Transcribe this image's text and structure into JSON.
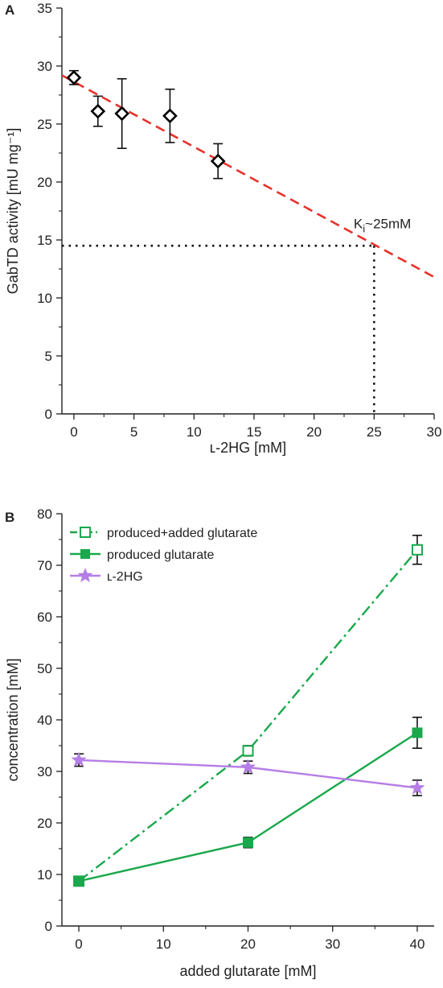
{
  "chart_data": [
    {
      "panel_label": "A",
      "type": "scatter",
      "xlabel": "ʟ-2HG [mM]",
      "ylabel": "GabTD activity [mU mg⁻¹]",
      "xlim": [
        -1,
        30
      ],
      "ylim": [
        0,
        35
      ],
      "x_ticks": [
        0,
        5,
        10,
        15,
        20,
        25,
        30
      ],
      "y_ticks": [
        0,
        5,
        10,
        15,
        20,
        25,
        30,
        35
      ],
      "series": [
        {
          "marker": "open-diamond",
          "color": "#000000",
          "points": [
            {
              "x": 0,
              "y": 29.0,
              "err": 0.6
            },
            {
              "x": 2,
              "y": 26.1,
              "err": 1.3
            },
            {
              "x": 4,
              "y": 25.9,
              "err": 3.0
            },
            {
              "x": 8,
              "y": 25.7,
              "err": 2.3
            },
            {
              "x": 12,
              "y": 21.8,
              "err": 1.5
            }
          ]
        }
      ],
      "fit_line": {
        "color": "#e8312a",
        "style": "dashed",
        "x": [
          -1,
          30
        ],
        "y": [
          29.2,
          11.8
        ]
      },
      "ki_reference": {
        "x": 25,
        "y": 14.5,
        "style": "dotted"
      },
      "annotation": {
        "text_main": "K",
        "text_sub": "i",
        "text_after": "~25mM"
      }
    },
    {
      "panel_label": "B",
      "type": "line",
      "xlabel": "added glutarate [mM]",
      "ylabel": "concentration [mM]",
      "xlim": [
        -2,
        42
      ],
      "ylim": [
        0,
        80
      ],
      "x_ticks": [
        0,
        10,
        20,
        30,
        40
      ],
      "y_ticks": [
        0,
        10,
        20,
        30,
        40,
        50,
        60,
        70,
        80
      ],
      "legend_position": "top-left",
      "series": [
        {
          "name": "produced+added glutarate",
          "color": "#1aa84c",
          "line": "dash-dot",
          "marker": "open-square",
          "x": [
            0,
            20,
            40
          ],
          "y": [
            8.7,
            34.0,
            73.0
          ],
          "err": [
            0.6,
            1.0,
            2.8
          ]
        },
        {
          "name": "produced glutarate",
          "color": "#1aa84c",
          "line": "solid",
          "marker": "filled-square",
          "x": [
            0,
            20,
            40
          ],
          "y": [
            8.7,
            16.2,
            37.5
          ],
          "err": [
            0.6,
            1.0,
            3.0
          ]
        },
        {
          "name": "ʟ-2HG",
          "color": "#b57ee6",
          "line": "solid",
          "marker": "star",
          "x": [
            0,
            20,
            40
          ],
          "y": [
            32.2,
            30.8,
            26.8
          ],
          "err": [
            1.2,
            1.2,
            1.5
          ]
        }
      ]
    }
  ]
}
